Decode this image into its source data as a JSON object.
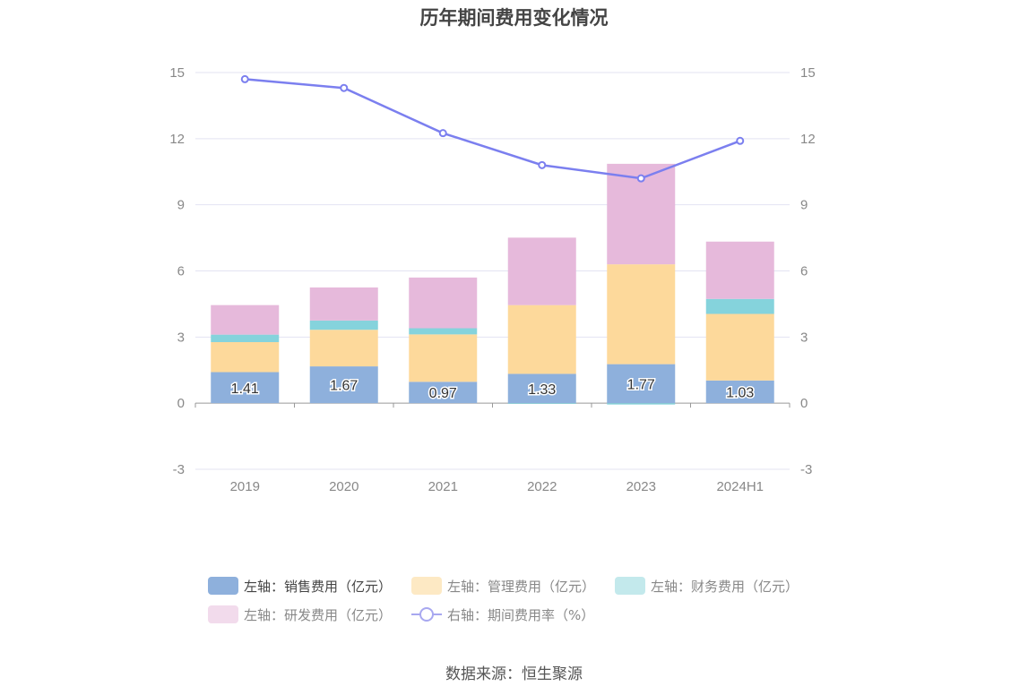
{
  "title": "历年期间费用变化情况",
  "source": "数据来源：恒生聚源",
  "chart_data": {
    "type": "bar",
    "stacked": true,
    "categories": [
      "2019",
      "2020",
      "2021",
      "2022",
      "2023",
      "2024H1"
    ],
    "y_left": {
      "ticks": [
        "15",
        "12",
        "9",
        "6",
        "3",
        "0",
        "-3"
      ],
      "range": [
        -3,
        15
      ]
    },
    "y_right": {
      "ticks": [
        "15",
        "12",
        "9",
        "6",
        "3",
        "0",
        "-3"
      ],
      "range": [
        -3,
        15
      ]
    },
    "series": [
      {
        "name": "左轴：销售费用（亿元）",
        "type": "bar",
        "color": "#8eb0dc",
        "values": [
          1.41,
          1.67,
          0.97,
          1.33,
          1.77,
          1.03
        ],
        "show_labels": true
      },
      {
        "name": "左轴：管理费用（亿元）",
        "type": "bar",
        "color": "#fdd99b",
        "values": [
          1.36,
          1.66,
          2.15,
          3.12,
          4.53,
          3.02
        ]
      },
      {
        "name": "左轴：财务费用（亿元）",
        "type": "bar",
        "color": "#85d3dc",
        "values": [
          0.34,
          0.42,
          0.28,
          -0.03,
          -0.06,
          0.68
        ]
      },
      {
        "name": "左轴：研发费用（亿元）",
        "type": "bar",
        "color": "#e6b9db",
        "values": [
          1.34,
          1.5,
          2.3,
          3.06,
          4.56,
          2.6
        ]
      },
      {
        "name": "右轴：期间费用率（%）",
        "type": "line",
        "axis": "right",
        "color": "#7b7fef",
        "values": [
          14.7,
          14.3,
          12.25,
          10.8,
          10.2,
          11.9
        ]
      }
    ],
    "legend_position": "bottom",
    "grid": true
  },
  "legend": {
    "row1": [
      "左轴：销售费用（亿元）",
      "左轴：管理费用（亿元）",
      "左轴：财务费用（亿元）"
    ],
    "row2": [
      "左轴：研发费用（亿元）",
      "右轴：期间费用率（%）"
    ]
  }
}
